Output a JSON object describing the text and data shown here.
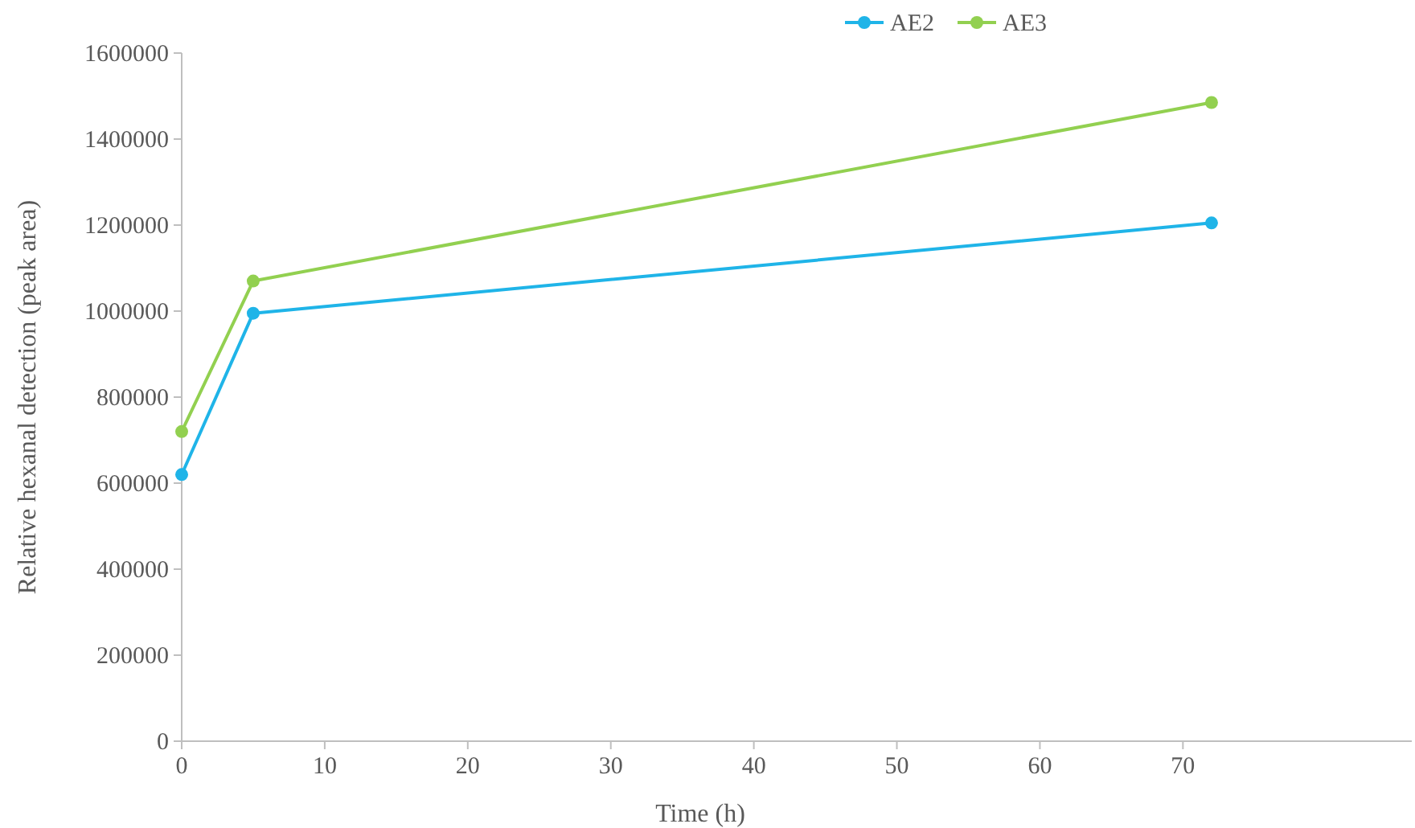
{
  "chart_data": {
    "type": "line",
    "xlabel": "Time (h)",
    "ylabel": "Relative hexanal detection (peak area)",
    "x": [
      0,
      5,
      72
    ],
    "series": [
      {
        "name": "AE2",
        "color": "#1fb4e8",
        "values": [
          620000,
          995000,
          1205000
        ]
      },
      {
        "name": "AE3",
        "color": "#92d050",
        "values": [
          720000,
          1070000,
          1485000
        ]
      }
    ],
    "xlim": [
      0,
      86
    ],
    "xticks": [
      0,
      10,
      20,
      30,
      40,
      50,
      60,
      70
    ],
    "ylim": [
      0,
      1600000
    ],
    "yticks": [
      0,
      200000,
      400000,
      600000,
      800000,
      1000000,
      1200000,
      1400000,
      1600000
    ],
    "grid": false,
    "legend": "top",
    "marker": "circle",
    "line_style": "solid"
  }
}
